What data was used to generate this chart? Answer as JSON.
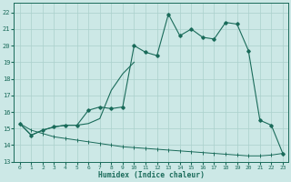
{
  "bg_color": "#cce8e6",
  "grid_color": "#aad0cc",
  "line_color": "#1a6b5a",
  "xlabel": "Humidex (Indice chaleur)",
  "xlim": [
    -0.5,
    23.5
  ],
  "ylim": [
    13,
    22.6
  ],
  "yticks": [
    13,
    14,
    15,
    16,
    17,
    18,
    19,
    20,
    21,
    22
  ],
  "xticks": [
    0,
    1,
    2,
    3,
    4,
    5,
    6,
    7,
    8,
    9,
    10,
    11,
    12,
    13,
    14,
    15,
    16,
    17,
    18,
    19,
    20,
    21,
    22,
    23
  ],
  "line1_x": [
    0,
    1,
    2,
    3,
    4,
    5,
    6,
    7,
    8,
    9,
    10,
    11,
    12,
    13,
    14,
    15,
    16,
    17,
    18,
    19,
    20,
    21,
    22,
    23
  ],
  "line1_y": [
    15.3,
    14.6,
    14.9,
    15.1,
    15.2,
    15.2,
    16.1,
    16.3,
    16.2,
    16.3,
    20.0,
    19.6,
    19.4,
    21.9,
    20.6,
    21.0,
    20.5,
    20.4,
    21.4,
    21.3,
    19.7,
    15.5,
    15.2,
    13.5
  ],
  "line2_x": [
    0,
    1,
    2,
    3,
    4,
    5,
    6,
    7,
    8,
    9,
    10,
    11,
    12,
    13,
    14,
    15,
    16,
    17,
    18,
    19,
    20,
    21,
    22,
    23
  ],
  "line2_y": [
    15.3,
    14.6,
    14.9,
    15.1,
    15.2,
    15.2,
    15.3,
    15.6,
    17.3,
    18.3,
    19.0,
    19.6,
    19.4,
    21.9,
    20.6,
    21.0,
    20.5,
    20.4,
    21.4,
    21.3,
    19.7,
    15.5,
    15.2,
    13.5
  ],
  "line3_x": [
    0,
    1,
    2,
    3,
    4,
    5,
    6,
    7,
    8,
    9,
    10,
    11,
    12,
    13,
    14,
    15,
    16,
    17,
    18,
    19,
    20,
    21,
    22,
    23
  ],
  "line3_y": [
    15.3,
    14.9,
    14.7,
    14.5,
    14.4,
    14.3,
    14.2,
    14.1,
    14.0,
    13.9,
    13.85,
    13.8,
    13.75,
    13.7,
    13.65,
    13.6,
    13.55,
    13.5,
    13.45,
    13.4,
    13.35,
    13.35,
    13.4,
    13.5
  ]
}
